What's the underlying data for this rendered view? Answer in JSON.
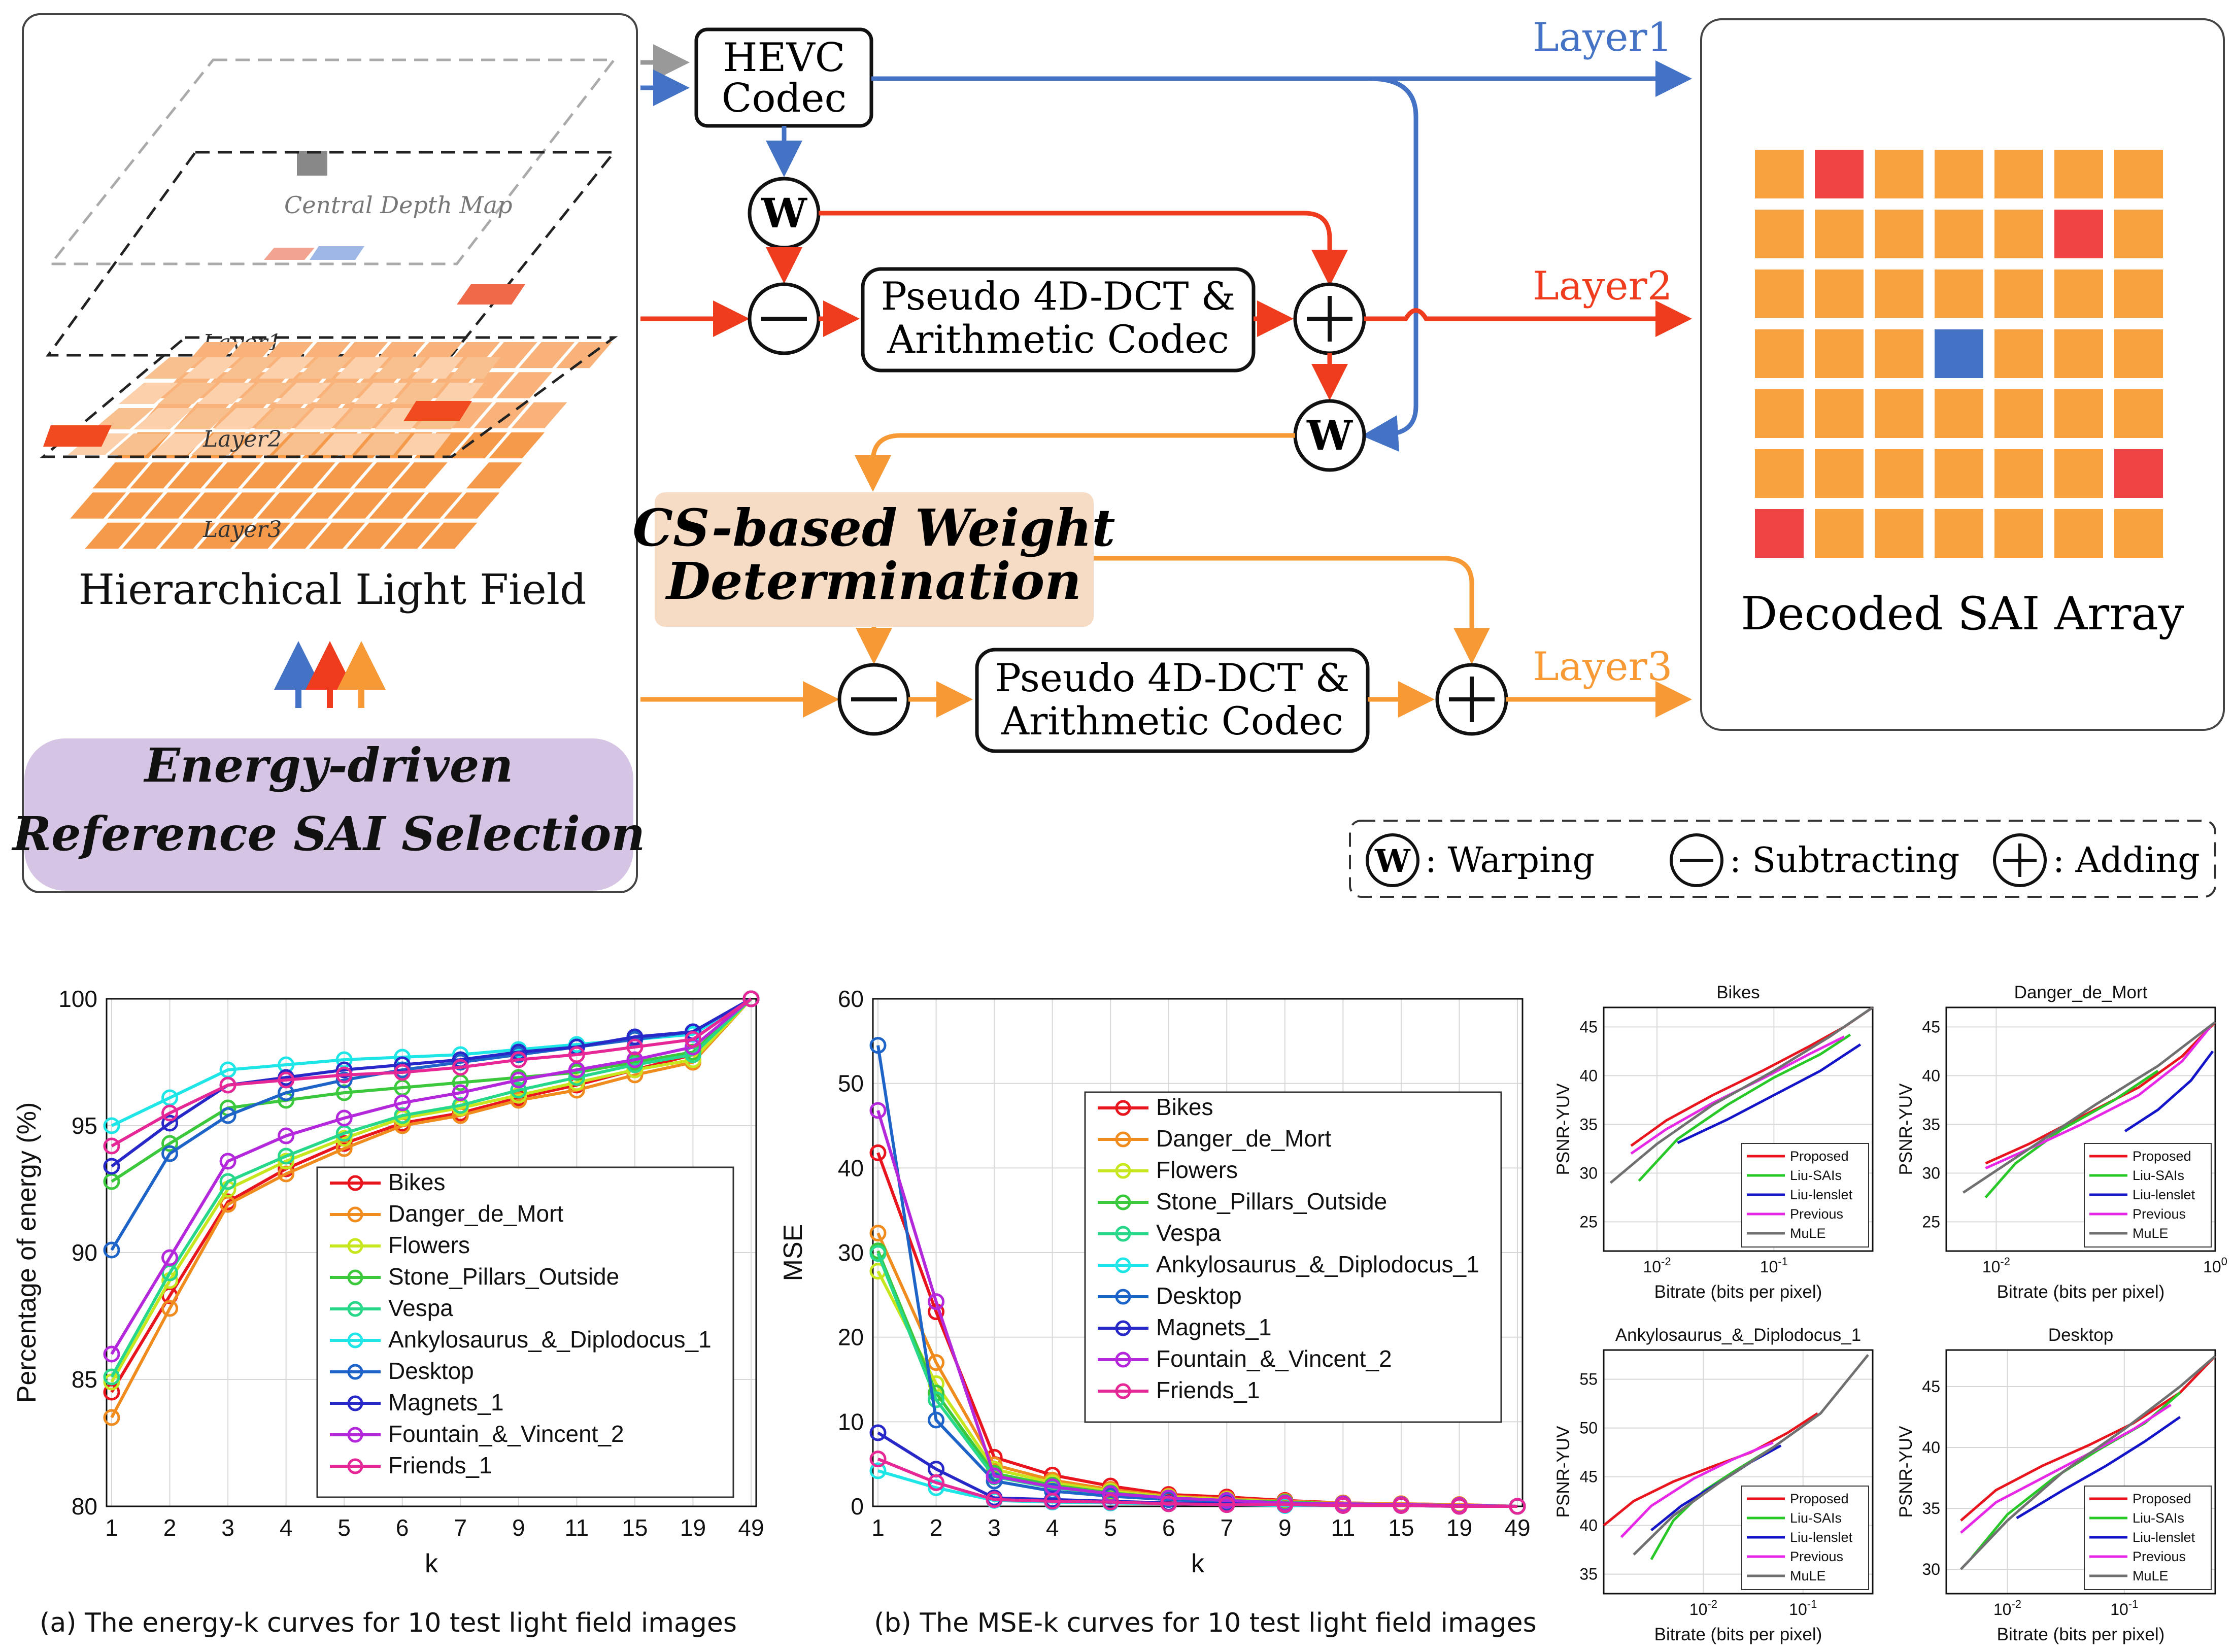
{
  "diagram": {
    "hierarchy_title": "Hierarchical Light Field",
    "layer_labels": [
      "Central Depth Map",
      "Layer1",
      "Layer2",
      "Layer3"
    ],
    "energy_box": [
      "Energy-driven",
      "Reference SAI Selection"
    ],
    "hevc": [
      "HEVC",
      "Codec"
    ],
    "codec_top": [
      "Pseudo 4D-DCT &",
      "Arithmetic Codec"
    ],
    "codec_bottom": [
      "Pseudo 4D-DCT &",
      "Arithmetic Codec"
    ],
    "cs_box": [
      "CS-based Weight",
      "Determination"
    ],
    "output_layers": [
      "Layer1",
      "Layer2",
      "Layer3"
    ],
    "decoded_title": "Decoded SAI Array",
    "warp_symbol": "W",
    "legend": {
      "warping": ": Warping",
      "subtracting": ": Subtracting",
      "adding": ": Adding"
    },
    "colors": {
      "layer1": "#4472c4",
      "layer2": "#f03c1e",
      "layer3": "#f79a35",
      "cell": "#f7a23f",
      "cell_red": "#ee4444",
      "cell_blue": "#4472c4",
      "energy_bg": "#d5c4e4",
      "cs_bg": "#f7dcc5"
    },
    "sai_grid": {
      "rows": 7,
      "cols": 7,
      "red_cells": [
        [
          0,
          1
        ],
        [
          1,
          5
        ],
        [
          5,
          6
        ],
        [
          6,
          0
        ]
      ],
      "blue_cells": [
        [
          3,
          3
        ]
      ]
    }
  },
  "captions": {
    "a": "(a) The energy-k curves for 10 test light field images",
    "b": "(b) The MSE-k curves for 10 test light field images"
  },
  "chart_data": [
    {
      "type": "line",
      "id": "energy",
      "x": [
        "1",
        "2",
        "3",
        "4",
        "5",
        "6",
        "7",
        "9",
        "11",
        "15",
        "19",
        "49"
      ],
      "xlabel": "k",
      "ylabel": "Percentage of energy (%)",
      "ylim": [
        80,
        100
      ],
      "yticks": [
        80,
        85,
        90,
        95,
        100
      ],
      "legend_position": "center-right",
      "series": [
        {
          "name": "Bikes",
          "color": "#e8141e",
          "values": [
            84.5,
            88.3,
            92.0,
            93.3,
            94.3,
            95.1,
            95.5,
            96.1,
            96.6,
            97.2,
            97.8,
            100
          ]
        },
        {
          "name": "Danger_de_Mort",
          "color": "#f08c1e",
          "values": [
            83.5,
            87.8,
            91.9,
            93.1,
            94.1,
            95.0,
            95.4,
            96.0,
            96.4,
            97.0,
            97.5,
            100
          ]
        },
        {
          "name": "Flowers",
          "color": "#c8e61e",
          "values": [
            84.9,
            88.9,
            92.5,
            93.6,
            94.5,
            95.3,
            95.7,
            96.2,
            96.7,
            97.2,
            97.6,
            100
          ]
        },
        {
          "name": "Stone_Pillars_Outside",
          "color": "#3cc83c",
          "values": [
            92.8,
            94.3,
            95.7,
            96.0,
            96.3,
            96.5,
            96.7,
            96.9,
            97.1,
            97.5,
            97.9,
            100
          ]
        },
        {
          "name": "Vespa",
          "color": "#28d88a",
          "values": [
            85.1,
            89.2,
            92.8,
            93.8,
            94.7,
            95.4,
            95.8,
            96.4,
            96.9,
            97.4,
            97.8,
            100
          ]
        },
        {
          "name": "Ankylosaurus_&_Diplodocus_1",
          "color": "#1ee6e6",
          "values": [
            95.0,
            96.1,
            97.2,
            97.4,
            97.6,
            97.7,
            97.8,
            98.0,
            98.2,
            98.4,
            98.6,
            100
          ]
        },
        {
          "name": "Desktop",
          "color": "#1e64c8",
          "values": [
            90.1,
            93.9,
            95.4,
            96.3,
            96.8,
            97.2,
            97.5,
            97.8,
            98.1,
            98.4,
            98.7,
            100
          ]
        },
        {
          "name": "Magnets_1",
          "color": "#2828c8",
          "values": [
            93.4,
            95.1,
            96.6,
            96.9,
            97.2,
            97.4,
            97.6,
            97.9,
            98.1,
            98.5,
            98.7,
            100
          ]
        },
        {
          "name": "Fountain_&_Vincent_2",
          "color": "#b428dc",
          "values": [
            86.0,
            89.8,
            93.6,
            94.6,
            95.3,
            95.9,
            96.3,
            96.8,
            97.2,
            97.6,
            98.1,
            100
          ]
        },
        {
          "name": "Friends_1",
          "color": "#e62896",
          "values": [
            94.2,
            95.5,
            96.6,
            96.8,
            97.0,
            97.1,
            97.3,
            97.6,
            97.8,
            98.1,
            98.4,
            100
          ]
        }
      ]
    },
    {
      "type": "line",
      "id": "mse",
      "x": [
        "1",
        "2",
        "3",
        "4",
        "5",
        "6",
        "7",
        "9",
        "11",
        "15",
        "19",
        "49"
      ],
      "xlabel": "k",
      "ylabel": "MSE",
      "ylim": [
        0,
        60
      ],
      "yticks": [
        0,
        10,
        20,
        30,
        40,
        50,
        60
      ],
      "legend_position": "top-right",
      "series": [
        {
          "name": "Bikes",
          "color": "#e8141e",
          "values": [
            41.8,
            23.0,
            5.8,
            3.7,
            2.4,
            1.4,
            1.1,
            0.7,
            0.4,
            0.3,
            0.2,
            0
          ]
        },
        {
          "name": "Danger_de_Mort",
          "color": "#f08c1e",
          "values": [
            32.3,
            17.0,
            4.9,
            3.1,
            2.0,
            1.2,
            0.9,
            0.6,
            0.4,
            0.3,
            0.2,
            0
          ]
        },
        {
          "name": "Flowers",
          "color": "#c8e61e",
          "values": [
            27.8,
            14.5,
            4.4,
            2.8,
            1.8,
            1.1,
            0.8,
            0.5,
            0.3,
            0.2,
            0.1,
            0
          ]
        },
        {
          "name": "Stone_Pillars_Outside",
          "color": "#3cc83c",
          "values": [
            30.2,
            13.4,
            3.9,
            2.5,
            1.6,
            1.0,
            0.7,
            0.5,
            0.3,
            0.2,
            0.1,
            0
          ]
        },
        {
          "name": "Vespa",
          "color": "#28d88a",
          "values": [
            29.9,
            12.6,
            3.5,
            2.2,
            1.5,
            0.9,
            0.6,
            0.4,
            0.3,
            0.2,
            0.1,
            0
          ]
        },
        {
          "name": "Ankylosaurus_&_Diplodocus_1",
          "color": "#1ee6e6",
          "values": [
            4.2,
            2.2,
            0.7,
            0.5,
            0.4,
            0.3,
            0.2,
            0.1,
            0.1,
            0.1,
            0.0,
            0
          ]
        },
        {
          "name": "Desktop",
          "color": "#1e64c8",
          "values": [
            54.5,
            10.2,
            3.0,
            1.8,
            1.2,
            0.8,
            0.5,
            0.3,
            0.2,
            0.1,
            0.1,
            0
          ]
        },
        {
          "name": "Magnets_1",
          "color": "#2828c8",
          "values": [
            8.7,
            4.4,
            1.0,
            0.8,
            0.6,
            0.4,
            0.3,
            0.2,
            0.1,
            0.1,
            0.0,
            0
          ]
        },
        {
          "name": "Fountain_&_Vincent_2",
          "color": "#b428dc",
          "values": [
            46.8,
            24.2,
            3.6,
            2.3,
            1.5,
            1.0,
            0.7,
            0.4,
            0.3,
            0.2,
            0.1,
            0
          ]
        },
        {
          "name": "Friends_1",
          "color": "#e62896",
          "values": [
            5.6,
            2.8,
            0.8,
            0.6,
            0.5,
            0.3,
            0.2,
            0.2,
            0.1,
            0.1,
            0.0,
            0
          ]
        }
      ]
    },
    {
      "type": "line",
      "id": "rd_bikes",
      "title": "Bikes",
      "xlabel": "Bitrate (bits per pixel)",
      "ylabel": "PSNR-YUV",
      "xscale": "log",
      "xlim": [
        0.0035,
        0.7
      ],
      "ylim": [
        22,
        47
      ],
      "xtick_labels": [
        "10^-2",
        "10^-1"
      ],
      "yticks": [
        25,
        30,
        35,
        40,
        45
      ],
      "legend_position": "bottom-right",
      "series": [
        {
          "name": "Proposed",
          "color": "#e8141e",
          "x": [
            0.006,
            0.012,
            0.03,
            0.08,
            0.2,
            0.4,
            0.7
          ],
          "y": [
            32.8,
            35.4,
            38.0,
            40.5,
            43.0,
            45.0,
            47.0
          ]
        },
        {
          "name": "Liu-SAIs",
          "color": "#28c828",
          "x": [
            0.007,
            0.015,
            0.04,
            0.1,
            0.25,
            0.45
          ],
          "y": [
            29.2,
            33.5,
            37.0,
            39.8,
            42.2,
            44.2
          ]
        },
        {
          "name": "Liu-lenslet",
          "color": "#1414c8",
          "x": [
            0.015,
            0.04,
            0.1,
            0.25,
            0.55
          ],
          "y": [
            33.1,
            35.5,
            38.0,
            40.5,
            43.2
          ]
        },
        {
          "name": "Previous",
          "color": "#e628e6",
          "x": [
            0.006,
            0.012,
            0.03,
            0.08,
            0.2,
            0.4
          ],
          "y": [
            32.0,
            34.5,
            37.2,
            39.7,
            42.2,
            44.0
          ]
        },
        {
          "name": "MuLE",
          "color": "#707070",
          "x": [
            0.004,
            0.01,
            0.03,
            0.1,
            0.3,
            0.7
          ],
          "y": [
            29.0,
            33.0,
            37.0,
            40.5,
            44.0,
            47.0
          ]
        }
      ]
    },
    {
      "type": "line",
      "id": "rd_danger",
      "title": "Danger_de_Mort",
      "xlabel": "Bitrate (bits per pixel)",
      "ylabel": "PSNR-YUV",
      "xscale": "log",
      "xlim": [
        0.0035,
        1.0
      ],
      "ylim": [
        22,
        47
      ],
      "xtick_labels": [
        "10^-2",
        "10^0"
      ],
      "yticks": [
        25,
        30,
        35,
        40,
        45
      ],
      "legend_position": "bottom-right",
      "series": [
        {
          "name": "Proposed",
          "color": "#e8141e",
          "x": [
            0.008,
            0.02,
            0.06,
            0.2,
            0.5,
            1.0
          ],
          "y": [
            31.0,
            33.0,
            35.8,
            38.8,
            42.0,
            45.5
          ]
        },
        {
          "name": "Liu-SAIs",
          "color": "#28c828",
          "x": [
            0.008,
            0.015,
            0.04,
            0.12,
            0.3
          ],
          "y": [
            27.5,
            31.0,
            34.5,
            37.5,
            40.5
          ]
        },
        {
          "name": "Liu-lenslet",
          "color": "#1414c8",
          "x": [
            0.15,
            0.3,
            0.6,
            0.95
          ],
          "y": [
            34.3,
            36.5,
            39.5,
            42.5
          ]
        },
        {
          "name": "Previous",
          "color": "#e628e6",
          "x": [
            0.008,
            0.02,
            0.06,
            0.2,
            0.5,
            0.9
          ],
          "y": [
            30.5,
            32.5,
            35.0,
            38.0,
            41.5,
            45.0
          ]
        },
        {
          "name": "MuLE",
          "color": "#707070",
          "x": [
            0.005,
            0.02,
            0.08,
            0.3,
            1.0
          ],
          "y": [
            28.0,
            32.5,
            37.0,
            41.0,
            45.5
          ]
        }
      ]
    },
    {
      "type": "line",
      "id": "rd_ankylo",
      "title": "Ankylosaurus_&_Diplodocus_1",
      "xlabel": "Bitrate (bits per pixel)",
      "ylabel": "PSNR-YUV",
      "xscale": "log",
      "xlim": [
        0.001,
        0.5
      ],
      "ylim": [
        33,
        58
      ],
      "xtick_labels": [
        "10^-2",
        "10^-1"
      ],
      "yticks": [
        35,
        40,
        45,
        50,
        55
      ],
      "legend_position": "bottom-right",
      "series": [
        {
          "name": "Proposed",
          "color": "#e8141e",
          "x": [
            0.001,
            0.002,
            0.005,
            0.012,
            0.03,
            0.07,
            0.14
          ],
          "y": [
            40.0,
            42.5,
            44.5,
            46.0,
            47.5,
            49.5,
            51.5
          ]
        },
        {
          "name": "Liu-SAIs",
          "color": "#28c828",
          "x": [
            0.003,
            0.005,
            0.01,
            0.02,
            0.05
          ],
          "y": [
            36.5,
            40.5,
            43.5,
            45.5,
            48.0
          ]
        },
        {
          "name": "Liu-lenslet",
          "color": "#1414c8",
          "x": [
            0.003,
            0.006,
            0.015,
            0.03,
            0.06
          ],
          "y": [
            39.5,
            42.0,
            44.5,
            46.5,
            48.2
          ]
        },
        {
          "name": "Previous",
          "color": "#e628e6",
          "x": [
            0.0015,
            0.003,
            0.008,
            0.02,
            0.05
          ],
          "y": [
            38.8,
            42.0,
            44.8,
            46.8,
            48.5
          ]
        },
        {
          "name": "MuLE",
          "color": "#707070",
          "x": [
            0.002,
            0.005,
            0.015,
            0.05,
            0.15,
            0.45
          ],
          "y": [
            37.0,
            41.0,
            44.5,
            48.0,
            51.5,
            57.5
          ]
        }
      ]
    },
    {
      "type": "line",
      "id": "rd_desktop",
      "title": "Desktop",
      "xlabel": "Bitrate (bits per pixel)",
      "ylabel": "PSNR-YUV",
      "xscale": "log",
      "xlim": [
        0.003,
        0.6
      ],
      "ylim": [
        28,
        48
      ],
      "xtick_labels": [
        "10^-2",
        "10^-1"
      ],
      "yticks": [
        30,
        35,
        40,
        45
      ],
      "legend_position": "bottom-right",
      "series": [
        {
          "name": "Proposed",
          "color": "#e8141e",
          "x": [
            0.004,
            0.008,
            0.02,
            0.05,
            0.12,
            0.3,
            0.6
          ],
          "y": [
            34.0,
            36.5,
            38.5,
            40.2,
            42.0,
            44.5,
            47.5
          ]
        },
        {
          "name": "Liu-SAIs",
          "color": "#28c828",
          "x": [
            0.005,
            0.01,
            0.025,
            0.06,
            0.15,
            0.3
          ],
          "y": [
            31.0,
            34.5,
            37.5,
            39.8,
            42.0,
            44.5
          ]
        },
        {
          "name": "Liu-lenslet",
          "color": "#1414c8",
          "x": [
            0.012,
            0.03,
            0.07,
            0.15,
            0.3
          ],
          "y": [
            34.2,
            36.5,
            38.5,
            40.5,
            42.5
          ]
        },
        {
          "name": "Previous",
          "color": "#e628e6",
          "x": [
            0.004,
            0.008,
            0.02,
            0.05,
            0.12,
            0.25
          ],
          "y": [
            33.0,
            35.5,
            37.5,
            39.5,
            41.5,
            43.5
          ]
        },
        {
          "name": "MuLE",
          "color": "#707070",
          "x": [
            0.004,
            0.01,
            0.03,
            0.1,
            0.3,
            0.6
          ],
          "y": [
            30.0,
            34.0,
            38.0,
            41.5,
            45.0,
            47.5
          ]
        }
      ]
    }
  ]
}
